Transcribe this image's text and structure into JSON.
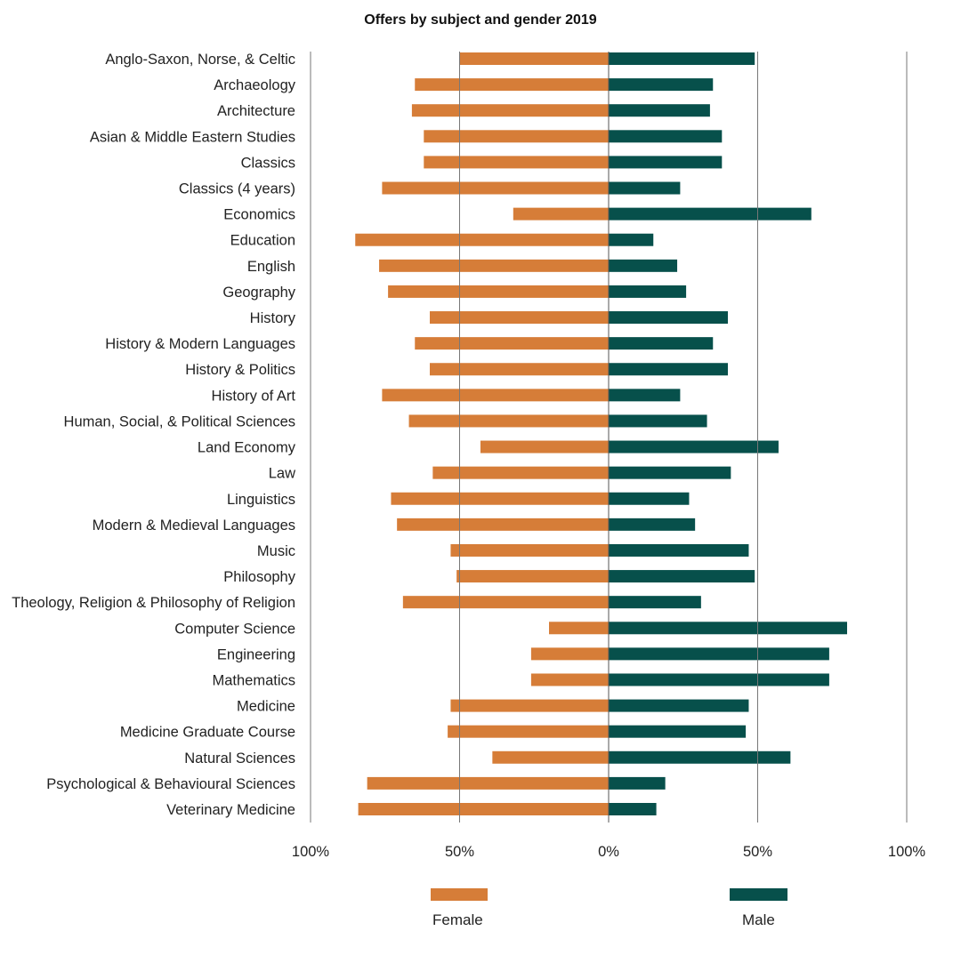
{
  "chart_data": {
    "type": "bar",
    "orientation": "horizontal-diverging",
    "title": "Offers by subject and gender 2019",
    "categories": [
      "Anglo-Saxon, Norse, & Celtic",
      "Archaeology",
      "Architecture",
      "Asian & Middle Eastern Studies",
      "Classics",
      "Classics (4 years)",
      "Economics",
      "Education",
      "English",
      "Geography",
      "History",
      "History & Modern Languages",
      "History & Politics",
      "History of Art",
      "Human, Social, & Political Sciences",
      "Land Economy",
      "Law",
      "Linguistics",
      "Modern & Medieval Languages",
      "Music",
      "Philosophy",
      "Theology, Religion & Philosophy of Religion",
      "Computer Science",
      "Engineering",
      "Mathematics",
      "Medicine",
      "Medicine Graduate Course",
      "Natural Sciences",
      "Psychological & Behavioural Sciences",
      "Veterinary Medicine"
    ],
    "series": [
      {
        "name": "Female",
        "color": "#d67d38",
        "values": [
          50,
          65,
          66,
          62,
          62,
          76,
          32,
          85,
          77,
          74,
          60,
          65,
          60,
          76,
          67,
          43,
          59,
          73,
          71,
          53,
          51,
          69,
          20,
          26,
          26,
          53,
          54,
          39,
          81,
          84
        ]
      },
      {
        "name": "Male",
        "color": "#07504b",
        "values": [
          49,
          35,
          34,
          38,
          38,
          24,
          68,
          15,
          23,
          26,
          40,
          35,
          40,
          24,
          33,
          57,
          41,
          27,
          29,
          47,
          49,
          31,
          80,
          74,
          74,
          47,
          46,
          61,
          19,
          16
        ]
      }
    ],
    "xlim": [
      -100,
      100
    ],
    "xticks": [
      "100%",
      "50%",
      "0%",
      "50%",
      "100%"
    ],
    "grid": true,
    "legend": "bottom"
  }
}
